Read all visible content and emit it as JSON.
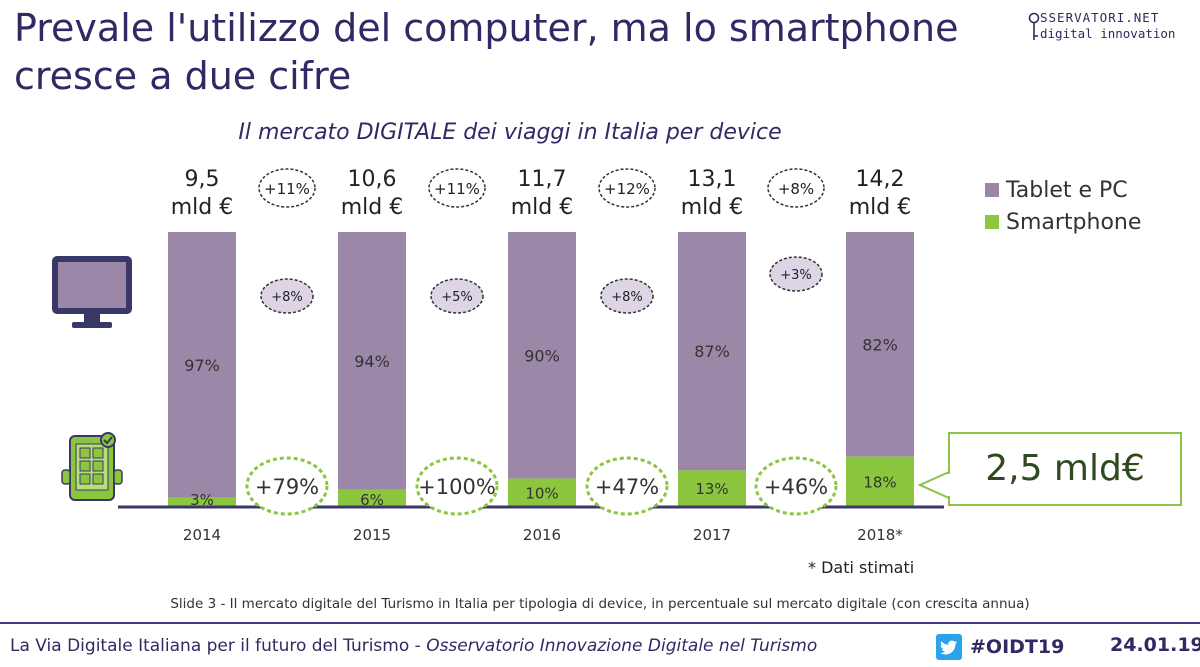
{
  "slide": {
    "title_line1": "Prevale l'utilizzo del computer, ma lo smartphone",
    "title_line2": "cresce a due cifre",
    "logo_top": "SSERVATORI.NET",
    "logo_bottom": "digital innovation",
    "subtitle": "Il mercato DIGITALE dei viaggi in Italia per device",
    "note": "* Dati stimati",
    "caption": "Slide 3 - Il mercato digitale del Turismo in Italia per tipologia di device, in percentuale sul mercato digitale (con crescita annua)",
    "footer_left": "La Via Digitale Italiana per il futuro del Turismo - ",
    "footer_left_italic": "Osservatorio Innovazione Digitale nel Turismo",
    "footer_hashtag": "#OIDT19",
    "footer_date": "24.01.19",
    "callout": "2,5 mld€"
  },
  "chart_data": {
    "type": "bar",
    "stacked": true,
    "percent_stacked": true,
    "categories": [
      "2014",
      "2015",
      "2016",
      "2017",
      "2018*"
    ],
    "totals": [
      {
        "line1": "9,5",
        "line2": "mld €"
      },
      {
        "line1": "10,6",
        "line2": "mld €"
      },
      {
        "line1": "11,7",
        "line2": "mld €"
      },
      {
        "line1": "13,1",
        "line2": "mld €"
      },
      {
        "line1": "14,2",
        "line2": "mld €"
      }
    ],
    "series": [
      {
        "name": "Smartphone",
        "values": [
          3,
          6,
          10,
          13,
          18
        ],
        "labels": [
          "3%",
          "6%",
          "10%",
          "13%",
          "18%"
        ],
        "color": "#8cc63f"
      },
      {
        "name": "Tablet e PC",
        "values": [
          97,
          94,
          90,
          87,
          82
        ],
        "labels": [
          "97%",
          "94%",
          "90%",
          "87%",
          "82%"
        ],
        "color": "#9b88a8"
      }
    ],
    "growth_total": [
      "+11%",
      "+11%",
      "+12%",
      "+8%"
    ],
    "growth_pc": [
      "+8%",
      "+5%",
      "+8%",
      "+3%"
    ],
    "growth_smartphone": [
      "+79%",
      "+100%",
      "+47%",
      "+46%"
    ],
    "ylim": [
      0,
      100
    ],
    "legend_position": "right",
    "grid": false
  }
}
